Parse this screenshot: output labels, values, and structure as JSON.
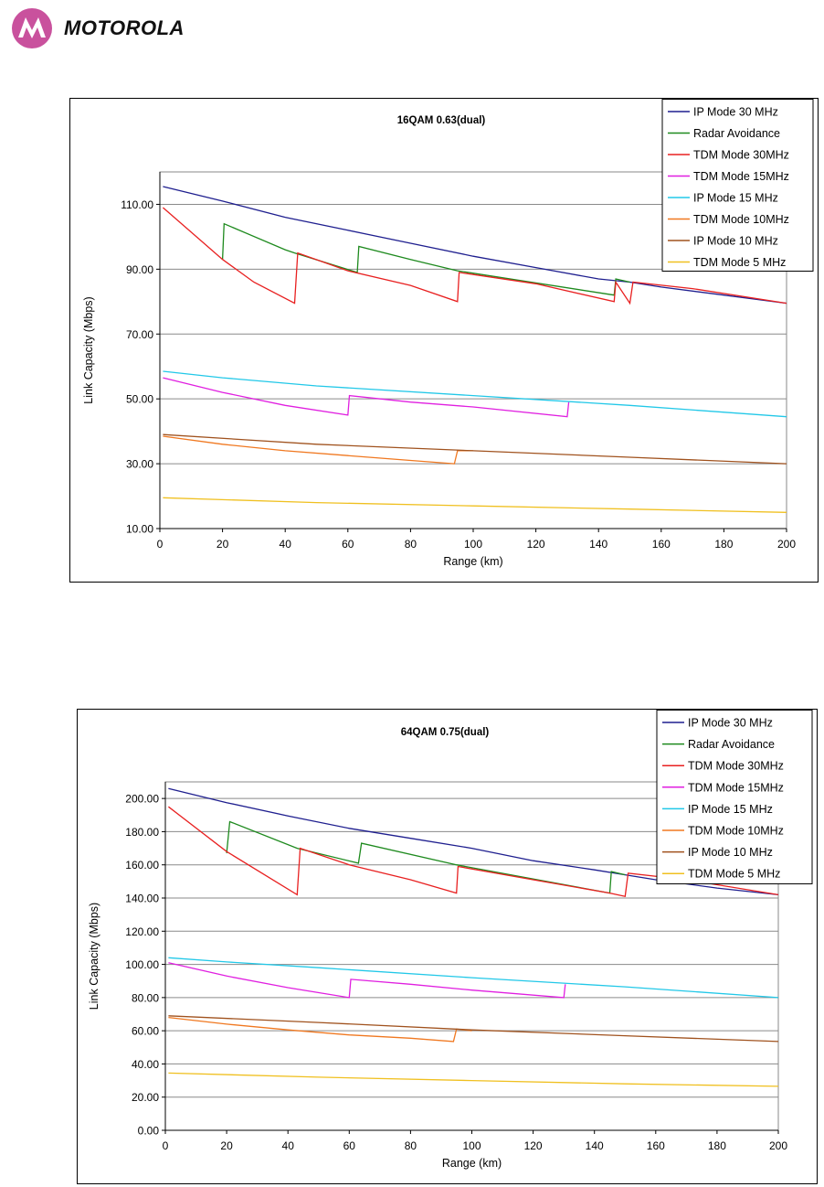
{
  "brand": {
    "name": "MOTOROLA",
    "logo_color": "#c9519d"
  },
  "chart_data": [
    {
      "type": "line",
      "title": "16QAM 0.63(dual)",
      "xlabel": "Range (km)",
      "ylabel": "Link Capacity (Mbps)",
      "xlim": [
        0,
        200
      ],
      "ylim": [
        10,
        120
      ],
      "xticks": [
        "0",
        "20",
        "40",
        "60",
        "80",
        "100",
        "120",
        "140",
        "160",
        "180",
        "200"
      ],
      "yticks": [
        "10.00",
        "30.00",
        "50.00",
        "70.00",
        "90.00",
        "110.00"
      ],
      "ytick_values": [
        10,
        30,
        50,
        70,
        90,
        110
      ],
      "grid": "horizontal",
      "legend_position": "top-right",
      "series": [
        {
          "name": "IP Mode 30 MHz",
          "color": "#1f1f8f",
          "points": [
            [
              1,
              115.5
            ],
            [
              20,
              111
            ],
            [
              40,
              106
            ],
            [
              60,
              102
            ],
            [
              80,
              98
            ],
            [
              100,
              94
            ],
            [
              120,
              90.5
            ],
            [
              140,
              87
            ],
            [
              150,
              86
            ],
            [
              160,
              84.5
            ],
            [
              180,
              82
            ],
            [
              200,
              79.5
            ]
          ]
        },
        {
          "name": "Radar Avoidance",
          "color": "#1e8a1e",
          "points": [
            [
              20,
              93
            ],
            [
              20.5,
              104
            ],
            [
              40,
              96
            ],
            [
              43,
              95
            ],
            [
              63,
              89
            ],
            [
              63.5,
              97
            ],
            [
              80,
              93
            ],
            [
              95,
              89.5
            ],
            [
              145,
              82
            ],
            [
              145.5,
              87
            ],
            [
              150,
              86
            ]
          ]
        },
        {
          "name": "TDM Mode 30MHz",
          "color": "#e82020",
          "points": [
            [
              1,
              109
            ],
            [
              20,
              93
            ],
            [
              30,
              86
            ],
            [
              43,
              79.5
            ],
            [
              44,
              95
            ],
            [
              60,
              89.5
            ],
            [
              80,
              85
            ],
            [
              95,
              80
            ],
            [
              95.5,
              89
            ],
            [
              120,
              85.5
            ],
            [
              145,
              80
            ],
            [
              145.5,
              86
            ],
            [
              150,
              79.5
            ],
            [
              151,
              86
            ],
            [
              170,
              84
            ],
            [
              200,
              79.5
            ]
          ]
        },
        {
          "name": "TDM Mode 15MHz",
          "color": "#e01fe0",
          "points": [
            [
              1,
              56.5
            ],
            [
              20,
              52
            ],
            [
              40,
              48
            ],
            [
              60,
              45
            ],
            [
              60.5,
              51
            ],
            [
              80,
              49
            ],
            [
              100,
              47.5
            ],
            [
              130,
              44.5
            ],
            [
              130.5,
              49
            ]
          ]
        },
        {
          "name": "IP Mode 15 MHz",
          "color": "#22c8e8",
          "points": [
            [
              1,
              58.5
            ],
            [
              20,
              56.5
            ],
            [
              50,
              54
            ],
            [
              100,
              51
            ],
            [
              150,
              48
            ],
            [
              200,
              44.5
            ]
          ]
        },
        {
          "name": "TDM Mode 10MHz",
          "color": "#f07820",
          "points": [
            [
              1,
              38.5
            ],
            [
              20,
              36
            ],
            [
              40,
              34
            ],
            [
              60,
              32.5
            ],
            [
              80,
              31
            ],
            [
              94,
              30
            ],
            [
              95,
              34
            ],
            [
              100,
              34
            ]
          ]
        },
        {
          "name": "IP Mode 10 MHz",
          "color": "#a0521e",
          "points": [
            [
              1,
              39
            ],
            [
              50,
              36
            ],
            [
              100,
              34
            ],
            [
              150,
              32
            ],
            [
              200,
              30
            ]
          ]
        },
        {
          "name": "TDM Mode 5 MHz",
          "color": "#f0c020",
          "points": [
            [
              1,
              19.5
            ],
            [
              50,
              18
            ],
            [
              100,
              17
            ],
            [
              150,
              16
            ],
            [
              200,
              15
            ]
          ]
        }
      ]
    },
    {
      "type": "line",
      "title": "64QAM 0.75(dual)",
      "xlabel": "Range (km)",
      "ylabel": "Link Capacity (Mbps)",
      "xlim": [
        0,
        200
      ],
      "ylim": [
        0,
        210
      ],
      "xticks": [
        "0",
        "20",
        "40",
        "60",
        "80",
        "100",
        "120",
        "140",
        "160",
        "180",
        "200"
      ],
      "yticks": [
        "0.00",
        "20.00",
        "40.00",
        "60.00",
        "80.00",
        "100.00",
        "120.00",
        "140.00",
        "160.00",
        "180.00",
        "200.00"
      ],
      "ytick_values": [
        0,
        20,
        40,
        60,
        80,
        100,
        120,
        140,
        160,
        180,
        200
      ],
      "grid": "horizontal",
      "legend_position": "top-right",
      "series": [
        {
          "name": "IP Mode 30 MHz",
          "color": "#1f1f8f",
          "points": [
            [
              1,
              206
            ],
            [
              20,
              197.5
            ],
            [
              40,
              189.5
            ],
            [
              60,
              182
            ],
            [
              80,
              176
            ],
            [
              100,
              170
            ],
            [
              120,
              162.5
            ],
            [
              140,
              157
            ],
            [
              150,
              154
            ],
            [
              160,
              151
            ],
            [
              180,
              146
            ],
            [
              200,
              142
            ]
          ]
        },
        {
          "name": "Radar Avoidance",
          "color": "#1e8a1e",
          "points": [
            [
              20,
              167
            ],
            [
              21,
              186
            ],
            [
              43,
              170
            ],
            [
              63,
              161
            ],
            [
              64,
              173
            ],
            [
              95,
              160
            ],
            [
              145,
              143
            ],
            [
              145.5,
              156
            ],
            [
              150,
              154
            ]
          ]
        },
        {
          "name": "TDM Mode 30MHz",
          "color": "#e82020",
          "points": [
            [
              1,
              195
            ],
            [
              20,
              168
            ],
            [
              43,
              142
            ],
            [
              44,
              170
            ],
            [
              60,
              160
            ],
            [
              80,
              151
            ],
            [
              95,
              143
            ],
            [
              95.5,
              159
            ],
            [
              120,
              151
            ],
            [
              145,
              143
            ],
            [
              150,
              141
            ],
            [
              151,
              155
            ],
            [
              170,
              151
            ],
            [
              200,
              142
            ]
          ]
        },
        {
          "name": "TDM Mode 15MHz",
          "color": "#e01fe0",
          "points": [
            [
              1,
              101
            ],
            [
              20,
              93
            ],
            [
              40,
              86
            ],
            [
              60,
              80
            ],
            [
              60.5,
              91
            ],
            [
              80,
              88
            ],
            [
              100,
              84.5
            ],
            [
              130,
              80
            ],
            [
              130.5,
              88
            ]
          ]
        },
        {
          "name": "IP Mode 15 MHz",
          "color": "#22c8e8",
          "points": [
            [
              1,
              104
            ],
            [
              20,
              101.5
            ],
            [
              50,
              98
            ],
            [
              100,
              92
            ],
            [
              150,
              86.5
            ],
            [
              200,
              80
            ]
          ]
        },
        {
          "name": "TDM Mode 10MHz",
          "color": "#f07820",
          "points": [
            [
              1,
              68
            ],
            [
              20,
              64
            ],
            [
              40,
              60.5
            ],
            [
              60,
              57.5
            ],
            [
              80,
              55.5
            ],
            [
              94,
              53.5
            ],
            [
              95,
              61
            ],
            [
              100,
              60
            ]
          ]
        },
        {
          "name": "IP Mode 10 MHz",
          "color": "#a0521e",
          "points": [
            [
              1,
              69
            ],
            [
              50,
              65
            ],
            [
              100,
              60.5
            ],
            [
              150,
              57
            ],
            [
              200,
              53.5
            ]
          ]
        },
        {
          "name": "TDM Mode 5 MHz",
          "color": "#f0c020",
          "points": [
            [
              1,
              34.5
            ],
            [
              50,
              32
            ],
            [
              100,
              30
            ],
            [
              150,
              28
            ],
            [
              200,
              26.5
            ]
          ]
        }
      ]
    }
  ]
}
